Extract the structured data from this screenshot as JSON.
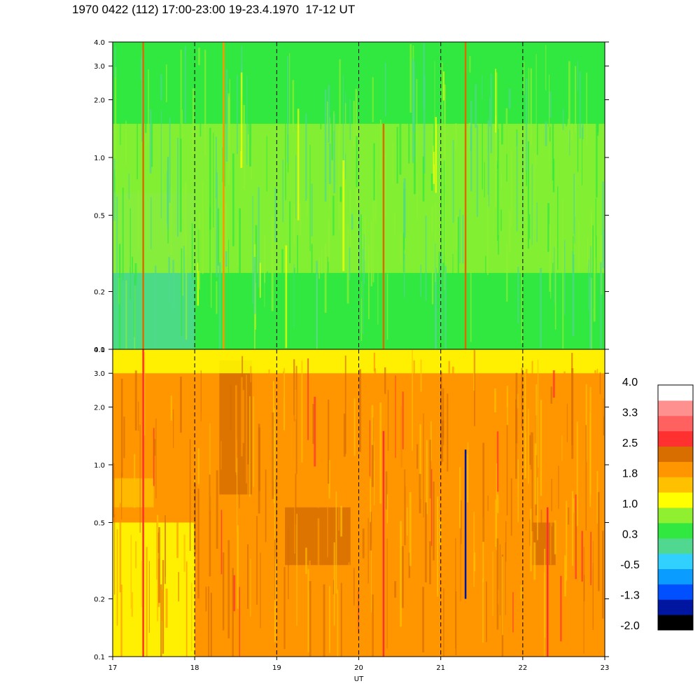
{
  "title": "1970 0422 (112) 17:00-23:00 19-23.4.1970  17-12 UT",
  "colors": {
    "levels": [
      "#000000",
      "#0015a0",
      "#0050ff",
      "#0a9cff",
      "#30d0ff",
      "#50d890",
      "#30e840",
      "#90f030",
      "#ffff00",
      "#ffc000",
      "#ff9600",
      "#d86e00",
      "#ff3030",
      "#ff6060",
      "#ff9090",
      "#ffffff"
    ]
  },
  "chart_data": [
    {
      "type": "heatmap",
      "panel": "upper",
      "xlabel": "",
      "x_range": [
        17,
        23
      ],
      "y_scale": "log",
      "ylim": [
        0.1,
        4.0
      ],
      "y_ticks": [
        "0.1",
        "0.2",
        "0.5",
        "1.0",
        "2.0",
        "3.0",
        "4.0"
      ],
      "x_tick_values": [
        18,
        19,
        20,
        21,
        22
      ],
      "background_level": 6,
      "regions": [
        {
          "x": [
            17,
            18
          ],
          "y": [
            0.1,
            0.65
          ],
          "level": 5
        },
        {
          "x": [
            17,
            23
          ],
          "y": [
            0.25,
            1.5
          ],
          "level": 7
        },
        {
          "x": [
            17,
            23
          ],
          "y": [
            1.5,
            4.0
          ],
          "level": 6
        }
      ],
      "vertical_traces": [
        {
          "x": 17.37,
          "y": [
            0.1,
            4.0
          ],
          "level": 11
        },
        {
          "x": 18.35,
          "y": [
            0.1,
            4.0
          ],
          "level": 10
        },
        {
          "x": 20.3,
          "y": [
            0.1,
            1.5
          ],
          "level": 11
        },
        {
          "x": 21.3,
          "y": [
            0.1,
            4.0
          ],
          "level": 11
        }
      ]
    },
    {
      "type": "heatmap",
      "panel": "lower",
      "xlabel": "UT",
      "x_range": [
        17,
        23
      ],
      "x_ticks": [
        "17",
        "18",
        "19",
        "20",
        "21",
        "22",
        "23"
      ],
      "y_scale": "log",
      "ylim": [
        0.1,
        4.0
      ],
      "y_ticks": [
        "0.1",
        "0.2",
        "0.5",
        "1.0",
        "2.0",
        "3.0",
        "4.0"
      ],
      "x_tick_values": [
        18,
        19,
        20,
        21,
        22
      ],
      "background_level": 10,
      "regions": [
        {
          "x": [
            17,
            18
          ],
          "y": [
            0.1,
            0.5
          ],
          "level": 8
        },
        {
          "x": [
            17,
            17.5
          ],
          "y": [
            0.6,
            0.85
          ],
          "level": 9
        },
        {
          "x": [
            18.3,
            18.7
          ],
          "y": [
            0.7,
            3.5
          ],
          "level": 11
        },
        {
          "x": [
            19.1,
            19.9
          ],
          "y": [
            0.3,
            0.6
          ],
          "level": 11
        },
        {
          "x": [
            22.1,
            22.4
          ],
          "y": [
            0.3,
            0.5
          ],
          "level": 11
        },
        {
          "x": [
            17,
            23
          ],
          "y": [
            3.0,
            4.0
          ],
          "level": 8
        }
      ],
      "vertical_traces": [
        {
          "x": 17.37,
          "y": [
            0.1,
            4.0
          ],
          "level": 12
        },
        {
          "x": 20.3,
          "y": [
            0.1,
            1.5
          ],
          "level": 12
        },
        {
          "x": 21.3,
          "y": [
            0.2,
            1.2
          ],
          "level": 1
        },
        {
          "x": 22.3,
          "y": [
            0.1,
            0.6
          ],
          "level": 12
        }
      ]
    }
  ],
  "colorbar": {
    "labels": [
      "4.0",
      "3.3",
      "2.5",
      "1.8",
      "1.0",
      "0.3",
      "-0.5",
      "-1.3",
      "-2.0"
    ]
  }
}
